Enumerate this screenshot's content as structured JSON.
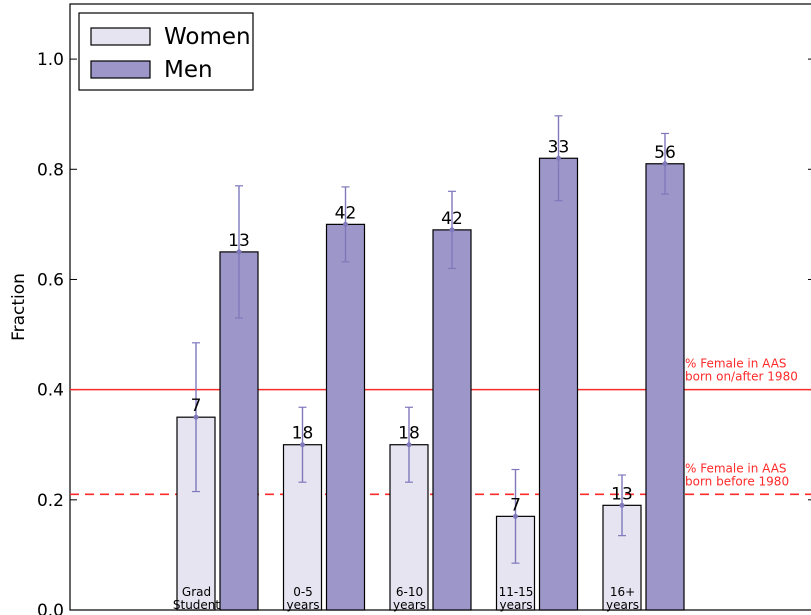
{
  "chart_data": {
    "type": "bar",
    "ylabel": "Fraction",
    "xlabel": "",
    "ylim": [
      0,
      1.1
    ],
    "yticks": [
      "0.0",
      "0.2",
      "0.4",
      "0.6",
      "0.8",
      "1.0"
    ],
    "categories": [
      [
        "Grad",
        "Student"
      ],
      [
        "0-5",
        "years"
      ],
      [
        "6-10",
        "years"
      ],
      [
        "11-15",
        "years"
      ],
      [
        "16+",
        "years"
      ]
    ],
    "series": [
      {
        "name": "Women",
        "color": "#e6e4f1",
        "values": [
          0.35,
          0.3,
          0.3,
          0.17,
          0.19
        ],
        "errors": [
          0.135,
          0.068,
          0.068,
          0.085,
          0.055
        ],
        "counts": [
          "7",
          "18",
          "18",
          "7",
          "13"
        ]
      },
      {
        "name": "Men",
        "color": "#9c97c8",
        "values": [
          0.65,
          0.7,
          0.69,
          0.82,
          0.81
        ],
        "errors": [
          0.12,
          0.068,
          0.07,
          0.077,
          0.055
        ],
        "counts": [
          "13",
          "42",
          "42",
          "33",
          "56"
        ]
      }
    ],
    "error_color": "#7f79bc",
    "reference_lines": [
      {
        "value": 0.4,
        "style": "solid",
        "color": "#ff2a2a",
        "label": [
          "% Female in AAS",
          "born on/after 1980"
        ]
      },
      {
        "value": 0.21,
        "style": "dashed",
        "color": "#ff2a2a",
        "label": [
          "% Female in AAS",
          "born before 1980"
        ]
      }
    ],
    "legend": {
      "position": "top-left",
      "entries": [
        "Women",
        "Men"
      ]
    },
    "grid": false
  }
}
